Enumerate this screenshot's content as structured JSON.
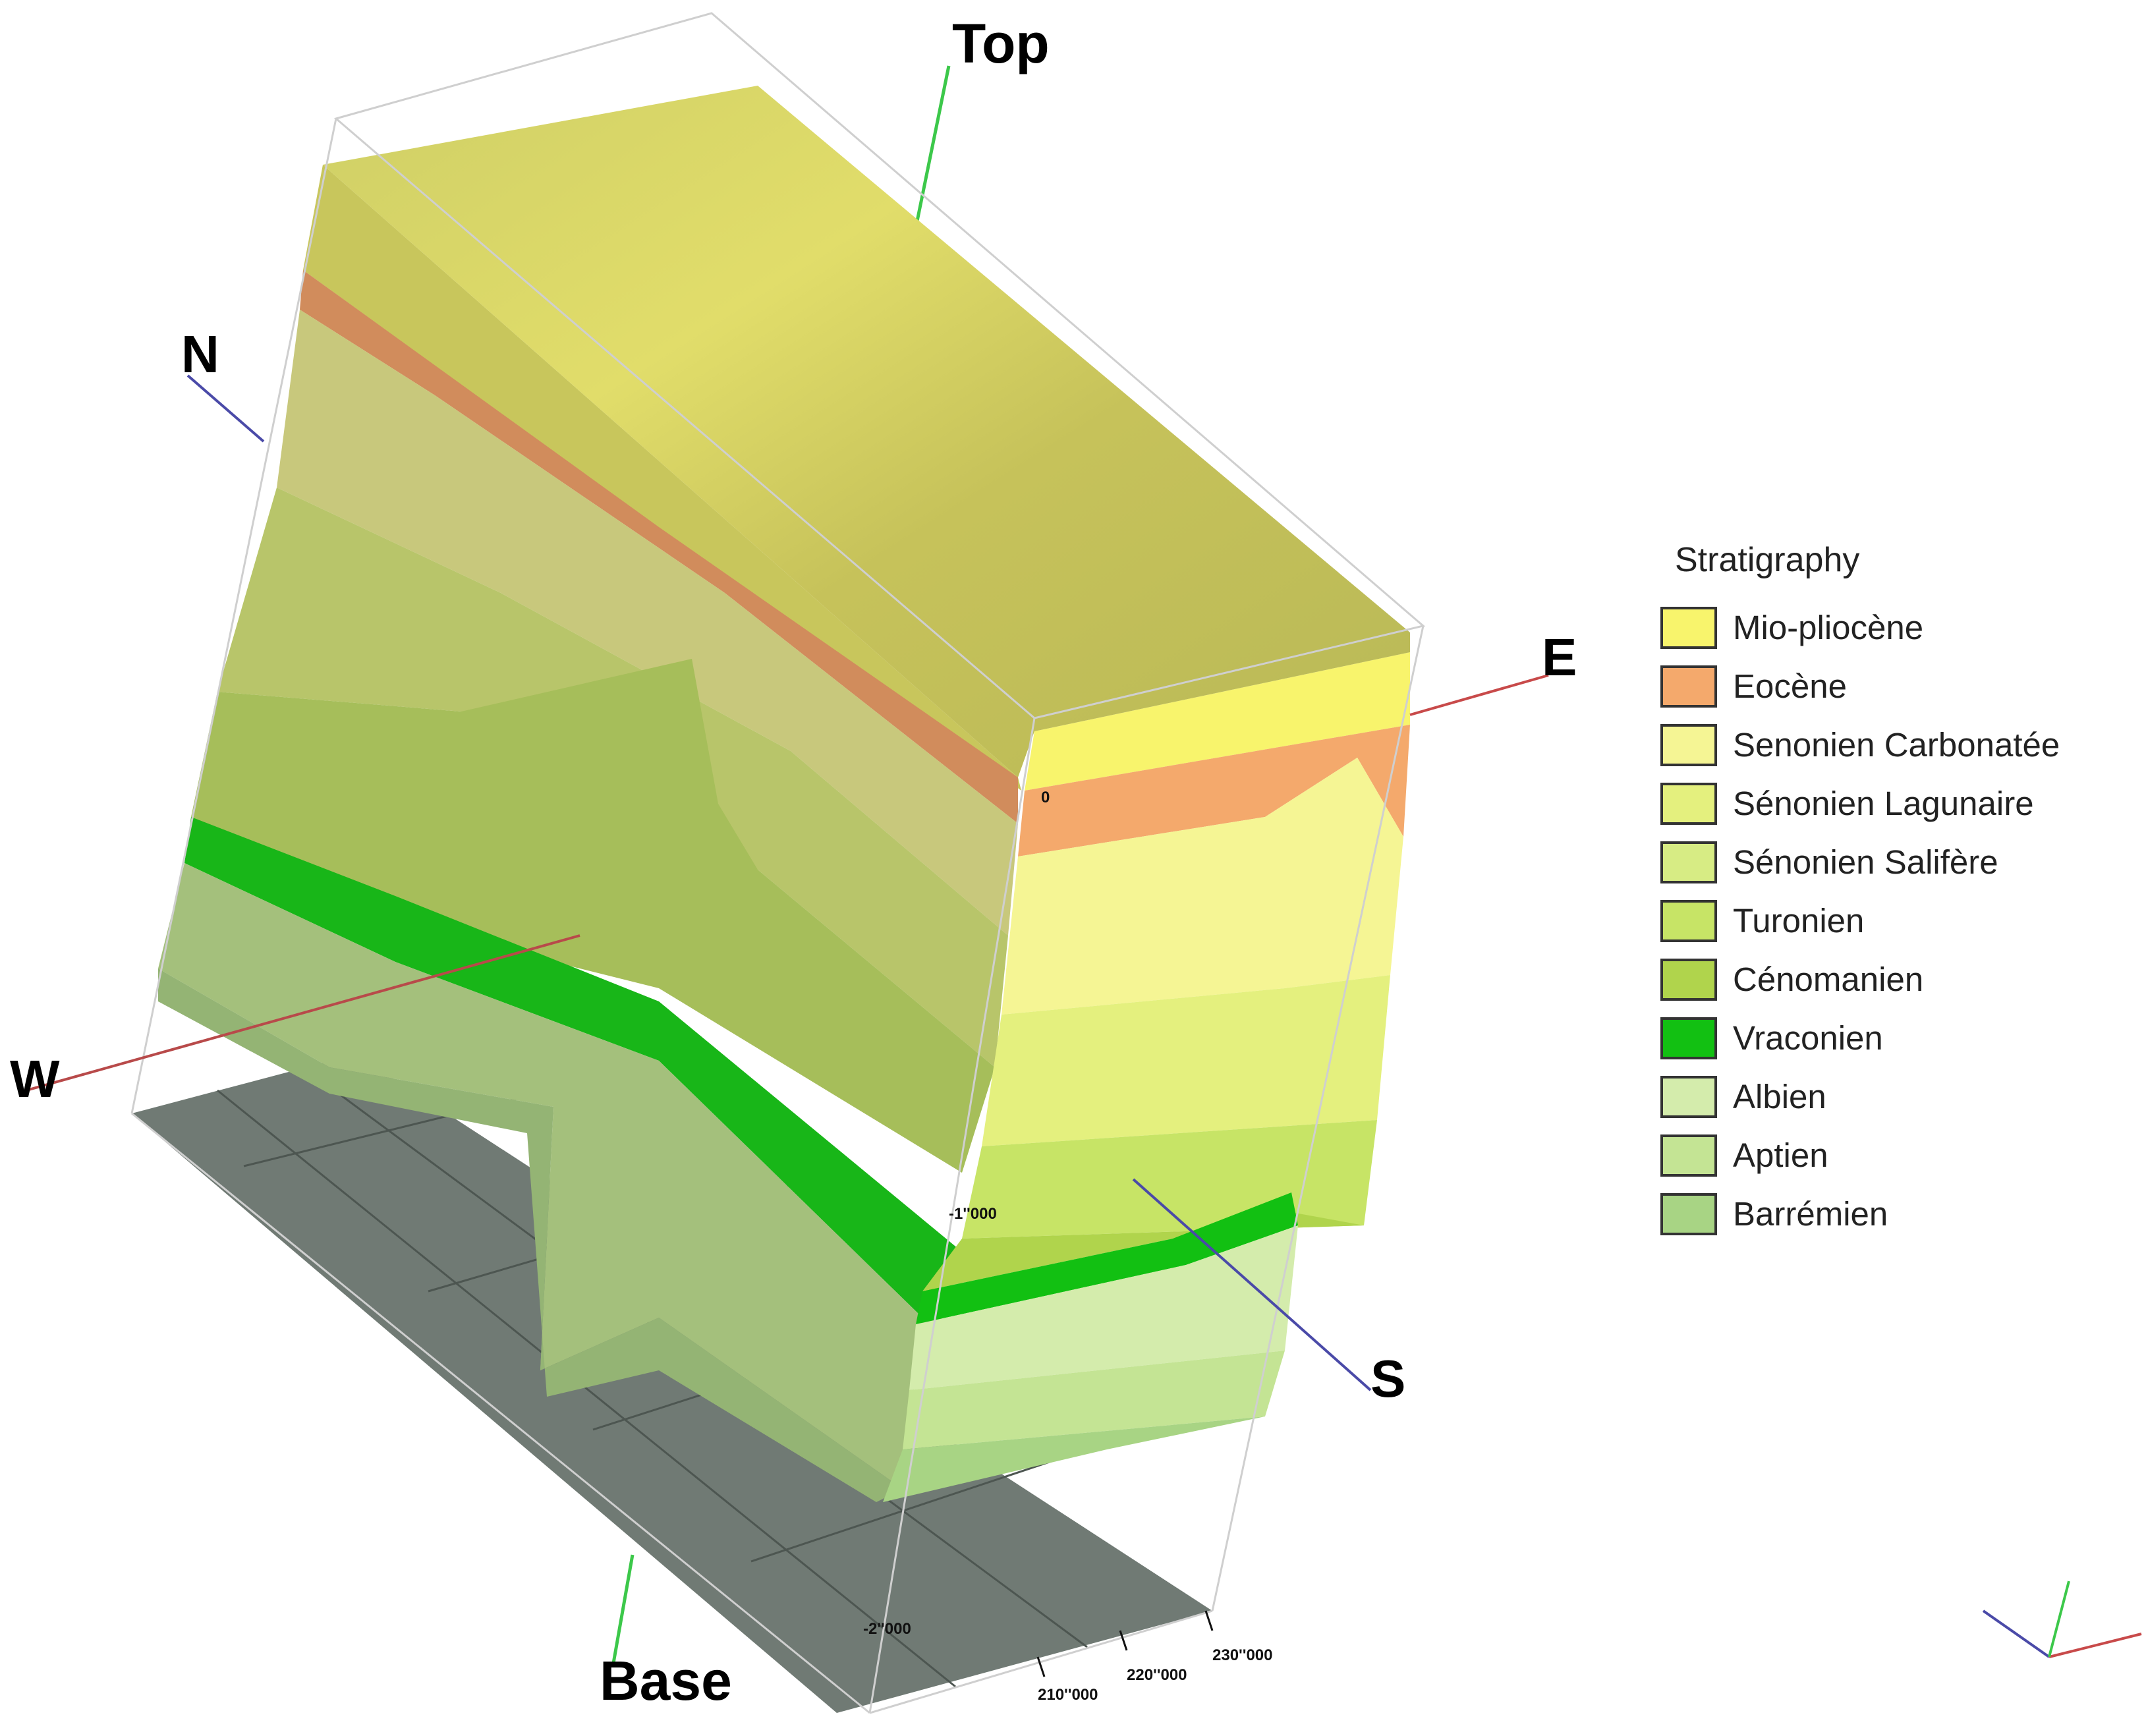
{
  "legend": {
    "title": "Stratigraphy",
    "items": [
      {
        "label": "Mio-pliocène",
        "color": "#f8f46c"
      },
      {
        "label": "Eocène",
        "color": "#f4a96c"
      },
      {
        "label": "Senonien Carbonatée",
        "color": "#f5f594"
      },
      {
        "label": "Sénonien Lagunaire",
        "color": "#e4f07e"
      },
      {
        "label": "Sénonien Salifère",
        "color": "#d7ec84"
      },
      {
        "label": "Turonien",
        "color": "#c7e466"
      },
      {
        "label": "Cénomanien",
        "color": "#b0d44c"
      },
      {
        "label": "Vraconien",
        "color": "#12c012"
      },
      {
        "label": "Albien",
        "color": "#d4ecac"
      },
      {
        "label": "Aptien",
        "color": "#c4e494"
      },
      {
        "label": "Barrémien",
        "color": "#a8d484"
      }
    ]
  },
  "axes": {
    "top": "Top",
    "base": "Base",
    "north": "N",
    "south": "S",
    "east": "E",
    "west": "W"
  },
  "depth_labels": [
    "0",
    "-1''000",
    "-2''000"
  ],
  "easting_labels": [
    "210''000",
    "220''000",
    "230''000"
  ]
}
